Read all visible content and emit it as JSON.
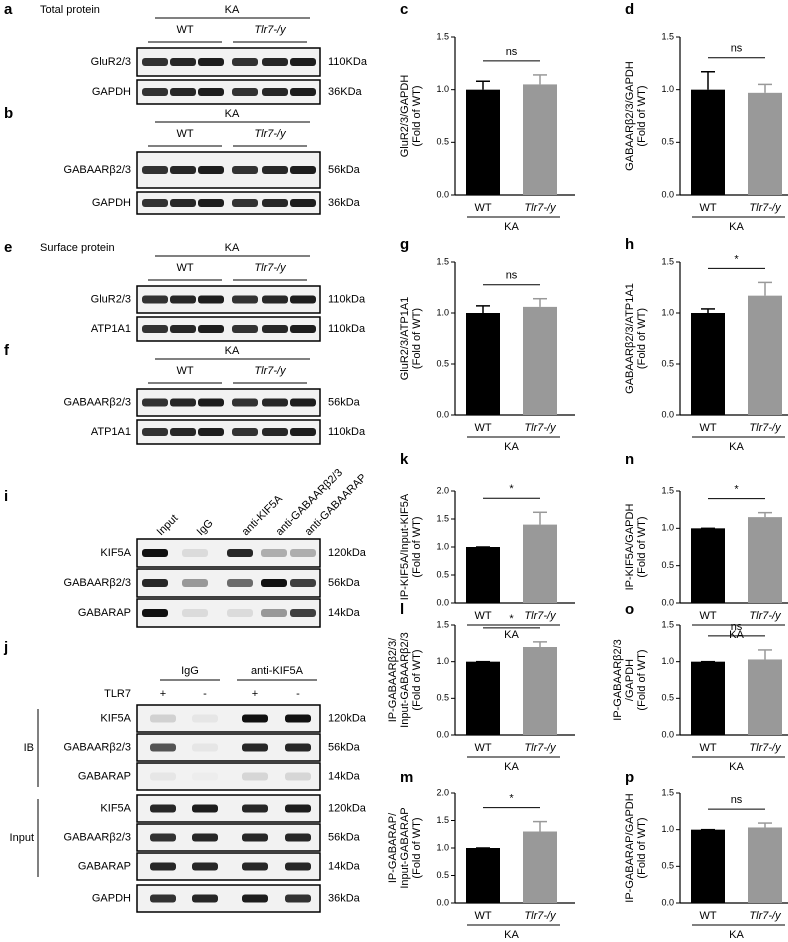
{
  "blots": [
    {
      "panel": "a",
      "title": "Total protein",
      "group": "KA",
      "subgroups": [
        "WT",
        "Tlr7-/y"
      ],
      "rows": [
        {
          "label": "GluR2/3",
          "size": "110KDa"
        },
        {
          "label": "GAPDH",
          "size": "36KDa"
        }
      ]
    },
    {
      "panel": "b",
      "group": "KA",
      "subgroups": [
        "WT",
        "Tlr7-/y"
      ],
      "rows": [
        {
          "label": "GABAARβ2/3",
          "size": "56kDa"
        },
        {
          "label": "GAPDH",
          "size": "36kDa"
        }
      ]
    },
    {
      "panel": "e",
      "title": "Surface protein",
      "group": "KA",
      "subgroups": [
        "WT",
        "Tlr7-/y"
      ],
      "rows": [
        {
          "label": "GluR2/3",
          "size": "110kDa"
        },
        {
          "label": "ATP1A1",
          "size": "110kDa"
        }
      ]
    },
    {
      "panel": "f",
      "group": "KA",
      "subgroups": [
        "WT",
        "Tlr7-/y"
      ],
      "rows": [
        {
          "label": "GABAARβ2/3",
          "size": "56kDa"
        },
        {
          "label": "ATP1A1",
          "size": "110kDa"
        }
      ]
    },
    {
      "panel": "i",
      "lanes": [
        "Input",
        "IgG",
        "anti-KIF5A",
        "anti-GABAARβ2/3",
        "anti-GABAARAP"
      ],
      "rows": [
        {
          "label": "KIF5A",
          "size": "120kDa"
        },
        {
          "label": "GABAARβ2/3",
          "size": "56kDa"
        },
        {
          "label": "GABARAP",
          "size": "14kDa"
        }
      ]
    },
    {
      "panel": "j",
      "groups": [
        "IgG",
        "anti-KIF5A"
      ],
      "condition": {
        "label": "TLR7",
        "values": [
          "+",
          "-",
          "+",
          "-"
        ]
      },
      "sections": [
        {
          "label": "IB",
          "rows": [
            {
              "label": "KIF5A",
              "size": "120kDa"
            },
            {
              "label": "GABAARβ2/3",
              "size": "56kDa"
            },
            {
              "label": "GABARAP",
              "size": "14kDa"
            }
          ]
        },
        {
          "label": "Input",
          "rows": [
            {
              "label": "KIF5A",
              "size": "120kDa"
            },
            {
              "label": "GABAARβ2/3",
              "size": "56kDa"
            },
            {
              "label": "GABARAP",
              "size": "14kDa"
            }
          ]
        }
      ],
      "rows": [
        {
          "label": "GAPDH",
          "size": "36kDa"
        }
      ]
    }
  ],
  "chart_data": [
    {
      "type": "bar",
      "panel": "c",
      "ylabel": [
        "GluR2/3/GAPDH",
        "(Fold of WT)"
      ],
      "categories": [
        "WT",
        "Tlr7-/y"
      ],
      "group": "KA",
      "values": [
        1.0,
        1.05
      ],
      "errors": [
        0.08,
        0.09
      ],
      "colors": [
        "#000000",
        "#999999"
      ],
      "significance": "ns",
      "ylim": [
        0,
        1.5
      ],
      "yticks": [
        {
          "value": 0,
          "label": "0.0"
        },
        0.5,
        {
          "value": 1,
          "label": "1.0"
        },
        1.5
      ]
    },
    {
      "type": "bar",
      "panel": "d",
      "ylabel": [
        "GABAARβ2/3/GAPDH",
        "(Fold of WT)"
      ],
      "categories": [
        "WT",
        "Tlr7-/y"
      ],
      "group": "KA",
      "values": [
        1.0,
        0.97
      ],
      "errors": [
        0.17,
        0.08
      ],
      "colors": [
        "#000000",
        "#999999"
      ],
      "significance": "ns",
      "ylim": [
        0,
        1.5
      ],
      "yticks": [
        {
          "value": 0,
          "label": "0.0"
        },
        0.5,
        {
          "value": 1,
          "label": "1.0"
        },
        1.5
      ]
    },
    {
      "type": "bar",
      "panel": "g",
      "ylabel": [
        "GluR2/3/ATP1A1",
        "(Fold of WT)"
      ],
      "categories": [
        "WT",
        "Tlr7-/y"
      ],
      "group": "KA",
      "values": [
        1.0,
        1.06
      ],
      "errors": [
        0.07,
        0.08
      ],
      "colors": [
        "#000000",
        "#999999"
      ],
      "significance": "ns",
      "ylim": [
        0,
        1.5
      ],
      "yticks": [
        {
          "value": 0,
          "label": "0.0"
        },
        0.5,
        {
          "value": 1,
          "label": "1.0"
        },
        1.5
      ]
    },
    {
      "type": "bar",
      "panel": "h",
      "ylabel": [
        "GABAARβ2/3/ATP1A1",
        "(Fold of WT)"
      ],
      "categories": [
        "WT",
        "Tlr7-/y"
      ],
      "group": "KA",
      "values": [
        1.0,
        1.17
      ],
      "errors": [
        0.04,
        0.13
      ],
      "colors": [
        "#000000",
        "#999999"
      ],
      "significance": "*",
      "ylim": [
        0,
        1.5
      ],
      "yticks": [
        {
          "value": 0,
          "label": "0.0"
        },
        0.5,
        {
          "value": 1,
          "label": "1.0"
        },
        1.5
      ]
    },
    {
      "type": "bar",
      "panel": "k",
      "ylabel": [
        "IP-KIF5A/Input-KIF5A",
        "(Fold of WT)"
      ],
      "categories": [
        "WT",
        "Tlr7-/y"
      ],
      "group": "KA",
      "values": [
        1.0,
        1.4
      ],
      "errors": [
        0,
        0.22
      ],
      "colors": [
        "#000000",
        "#999999"
      ],
      "significance": "*",
      "ylim": [
        0,
        2
      ],
      "yticks": [
        {
          "value": 0,
          "label": "0.0"
        },
        0.5,
        {
          "value": 1,
          "label": "1.0"
        },
        1.5,
        {
          "value": 2,
          "label": "2.0"
        }
      ]
    },
    {
      "type": "bar",
      "panel": "n",
      "ylabel": [
        "IP-KIF5A/GAPDH",
        "(Fold of WT)"
      ],
      "categories": [
        "WT",
        "Tlr7-/y"
      ],
      "group": "KA",
      "values": [
        1.0,
        1.15
      ],
      "errors": [
        0,
        0.06
      ],
      "colors": [
        "#000000",
        "#999999"
      ],
      "significance": "*",
      "ylim": [
        0,
        1.5
      ],
      "yticks": [
        {
          "value": 0,
          "label": "0.0"
        },
        0.5,
        {
          "value": 1,
          "label": "1.0"
        },
        1.5
      ]
    },
    {
      "type": "bar",
      "panel": "l",
      "ylabel": [
        "IP-GABAARβ2/3/",
        "Input-GABAARβ2/3",
        "(Fold of WT)"
      ],
      "categories": [
        "WT",
        "Tlr7-/y"
      ],
      "group": "KA",
      "values": [
        1.0,
        1.2
      ],
      "errors": [
        0,
        0.07
      ],
      "colors": [
        "#000000",
        "#999999"
      ],
      "significance": "*",
      "ylim": [
        0,
        1.5
      ],
      "yticks": [
        {
          "value": 0,
          "label": "0.0"
        },
        0.5,
        {
          "value": 1,
          "label": "1.0"
        },
        1.5
      ]
    },
    {
      "type": "bar",
      "panel": "o",
      "ylabel": [
        "IP-GABAARβ2/3",
        "/GAPDH",
        "(Fold of WT)"
      ],
      "categories": [
        "WT",
        "Tlr7-/y"
      ],
      "group": "KA",
      "values": [
        1.0,
        1.03
      ],
      "errors": [
        0,
        0.13
      ],
      "colors": [
        "#000000",
        "#999999"
      ],
      "significance": "ns",
      "ylim": [
        0,
        1.5
      ],
      "yticks": [
        {
          "value": 0,
          "label": "0.0"
        },
        0.5,
        {
          "value": 1,
          "label": "1.0"
        },
        1.5
      ]
    },
    {
      "type": "bar",
      "panel": "m",
      "ylabel": [
        "IP-GABARAP/",
        "Input-GABARAP",
        "(Fold of WT)"
      ],
      "categories": [
        "WT",
        "Tlr7-/y"
      ],
      "group": "KA",
      "values": [
        1.0,
        1.3
      ],
      "errors": [
        0,
        0.18
      ],
      "colors": [
        "#000000",
        "#999999"
      ],
      "significance": "*",
      "ylim": [
        0,
        2
      ],
      "yticks": [
        {
          "value": 0,
          "label": "0.0"
        },
        0.5,
        {
          "value": 1,
          "label": "1.0"
        },
        1.5,
        {
          "value": 2,
          "label": "2.0"
        }
      ]
    },
    {
      "type": "bar",
      "panel": "p",
      "ylabel": [
        "IP-GABARAP/GAPDH",
        "(Fold of WT)"
      ],
      "categories": [
        "WT",
        "Tlr7-/y"
      ],
      "group": "KA",
      "values": [
        1.0,
        1.03
      ],
      "errors": [
        0,
        0.06
      ],
      "colors": [
        "#000000",
        "#999999"
      ],
      "significance": "ns",
      "ylim": [
        0,
        1.5
      ],
      "yticks": [
        {
          "value": 0,
          "label": "0.0"
        },
        0.5,
        {
          "value": 1,
          "label": "1.0"
        },
        1.5
      ]
    }
  ]
}
